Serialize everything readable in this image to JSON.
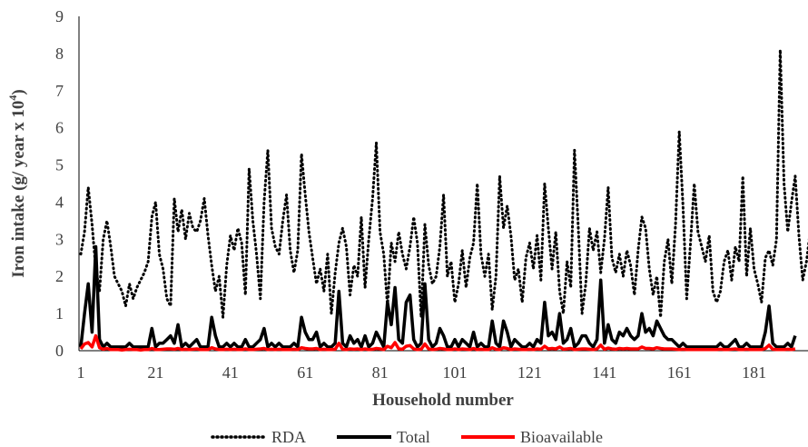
{
  "chart_data": {
    "type": "line",
    "title": "",
    "xlabel": "Household number",
    "ylabel_main": "Iron intake (g/ year x 10",
    "ylabel_sup": "4",
    "ylabel_end": ")",
    "xlim": [
      1,
      194
    ],
    "ylim": [
      0,
      9
    ],
    "x_ticks": [
      1,
      21,
      41,
      61,
      81,
      101,
      121,
      141,
      161,
      181
    ],
    "y_ticks": [
      0,
      1,
      2,
      3,
      4,
      5,
      6,
      7,
      8,
      9
    ],
    "grid": false,
    "legend_position": "bottom",
    "series": [
      {
        "name": "RDA",
        "style": "dotted",
        "color": "#000000",
        "values": [
          2.6,
          3.2,
          4.4,
          3.4,
          2.2,
          1.6,
          3.0,
          3.5,
          2.8,
          2.0,
          1.8,
          1.6,
          1.2,
          1.8,
          1.4,
          1.7,
          1.9,
          2.1,
          2.4,
          3.6,
          4.0,
          2.6,
          2.2,
          1.4,
          1.2,
          4.1,
          3.2,
          3.8,
          3.0,
          3.7,
          3.3,
          3.2,
          3.5,
          4.1,
          3.1,
          2.3,
          1.6,
          2.0,
          0.9,
          2.3,
          3.1,
          2.7,
          3.3,
          2.9,
          1.5,
          4.9,
          3.5,
          2.6,
          1.4,
          4.0,
          5.4,
          3.3,
          2.8,
          2.6,
          3.5,
          4.2,
          2.7,
          2.1,
          2.7,
          5.3,
          4.2,
          3.2,
          2.5,
          1.8,
          2.2,
          1.6,
          2.6,
          1.0,
          2.1,
          2.9,
          3.3,
          2.8,
          1.5,
          2.3,
          2.0,
          3.6,
          1.7,
          3.0,
          4.1,
          5.6,
          3.2,
          2.6,
          1.2,
          2.9,
          2.4,
          3.2,
          2.6,
          2.2,
          2.8,
          3.6,
          2.9,
          0.9,
          3.4,
          2.3,
          1.8,
          2.0,
          2.8,
          4.2,
          2.0,
          2.4,
          1.3,
          1.8,
          2.7,
          1.7,
          2.5,
          2.9,
          4.5,
          2.6,
          2.0,
          2.6,
          1.1,
          2.0,
          4.7,
          3.3,
          3.9,
          3.1,
          1.9,
          2.2,
          1.3,
          2.5,
          2.9,
          2.2,
          3.1,
          1.9,
          4.5,
          3.3,
          2.2,
          3.2,
          1.6,
          1.0,
          2.4,
          1.7,
          5.4,
          3.3,
          1.0,
          1.8,
          3.3,
          2.7,
          3.2,
          2.1,
          3.0,
          4.4,
          2.5,
          2.1,
          2.6,
          2.0,
          2.7,
          2.3,
          1.5,
          2.7,
          3.6,
          3.3,
          2.2,
          1.5,
          2.0,
          0.9,
          2.4,
          3.0,
          1.8,
          3.4,
          5.9,
          3.9,
          1.4,
          2.9,
          4.5,
          3.2,
          2.8,
          2.4,
          3.1,
          1.6,
          1.3,
          1.6,
          2.4,
          2.7,
          1.9,
          2.8,
          2.4,
          4.7,
          2.0,
          3.3,
          2.2,
          1.8,
          1.3,
          2.5,
          2.7,
          2.3,
          3.0,
          8.1,
          4.5,
          3.2,
          4.0,
          4.7,
          3.1,
          1.9,
          2.4,
          3.2
        ]
      },
      {
        "name": "Total",
        "style": "solid",
        "color": "#000000",
        "values": [
          0.1,
          1.0,
          1.8,
          0.5,
          2.8,
          0.3,
          0.1,
          0.2,
          0.1,
          0.1,
          0.1,
          0.1,
          0.1,
          0.2,
          0.1,
          0.1,
          0.1,
          0.1,
          0.1,
          0.6,
          0.1,
          0.2,
          0.2,
          0.3,
          0.4,
          0.2,
          0.7,
          0.1,
          0.2,
          0.1,
          0.2,
          0.3,
          0.1,
          0.1,
          0.1,
          0.9,
          0.4,
          0.1,
          0.1,
          0.2,
          0.1,
          0.2,
          0.1,
          0.1,
          0.3,
          0.1,
          0.1,
          0.2,
          0.3,
          0.6,
          0.1,
          0.2,
          0.1,
          0.2,
          0.1,
          0.1,
          0.1,
          0.2,
          0.1,
          0.9,
          0.5,
          0.3,
          0.3,
          0.5,
          0.1,
          0.2,
          0.1,
          0.1,
          0.2,
          1.6,
          0.2,
          0.1,
          0.4,
          0.2,
          0.3,
          0.1,
          0.4,
          0.1,
          0.2,
          0.5,
          0.3,
          0.1,
          1.3,
          0.7,
          1.7,
          0.3,
          0.2,
          1.3,
          1.5,
          0.3,
          0.1,
          0.2,
          1.8,
          0.3,
          0.1,
          0.2,
          0.6,
          0.4,
          0.1,
          0.1,
          0.3,
          0.1,
          0.3,
          0.2,
          0.1,
          0.5,
          0.1,
          0.2,
          0.1,
          0.1,
          0.8,
          0.2,
          0.1,
          0.8,
          0.5,
          0.1,
          0.3,
          0.2,
          0.1,
          0.1,
          0.2,
          0.1,
          0.3,
          0.2,
          1.3,
          0.4,
          0.5,
          0.3,
          1.0,
          0.2,
          0.3,
          0.6,
          0.1,
          0.2,
          0.4,
          0.4,
          0.2,
          0.1,
          0.3,
          1.9,
          0.2,
          0.7,
          0.3,
          0.2,
          0.5,
          0.4,
          0.6,
          0.4,
          0.3,
          0.4,
          1.0,
          0.5,
          0.6,
          0.4,
          0.8,
          0.6,
          0.4,
          0.3,
          0.3,
          0.2,
          0.1,
          0.2,
          0.1,
          0.1,
          0.1,
          0.1,
          0.1,
          0.1,
          0.1,
          0.1,
          0.1,
          0.2,
          0.1,
          0.1,
          0.2,
          0.3,
          0.1,
          0.1,
          0.2,
          0.1,
          0.1,
          0.1,
          0.1,
          0.5,
          1.2,
          0.2,
          0.1,
          0.1,
          0.1,
          0.2,
          0.1,
          0.4
        ]
      },
      {
        "name": "Bioavailable",
        "style": "solid",
        "color": "#ff0000",
        "values": [
          0.05,
          0.18,
          0.22,
          0.1,
          0.4,
          0.08,
          0.04,
          0.06,
          0.03,
          0.03,
          0.03,
          0.02,
          0.03,
          0.04,
          0.03,
          0.03,
          0.02,
          0.03,
          0.03,
          0.06,
          0.03,
          0.03,
          0.04,
          0.05,
          0.05,
          0.04,
          0.06,
          0.03,
          0.04,
          0.03,
          0.04,
          0.05,
          0.03,
          0.03,
          0.03,
          0.08,
          0.05,
          0.03,
          0.03,
          0.04,
          0.03,
          0.04,
          0.03,
          0.03,
          0.05,
          0.03,
          0.03,
          0.04,
          0.05,
          0.06,
          0.03,
          0.04,
          0.03,
          0.04,
          0.03,
          0.03,
          0.03,
          0.04,
          0.03,
          0.08,
          0.06,
          0.05,
          0.05,
          0.06,
          0.03,
          0.04,
          0.03,
          0.03,
          0.04,
          0.2,
          0.04,
          0.03,
          0.05,
          0.04,
          0.05,
          0.03,
          0.05,
          0.03,
          0.04,
          0.06,
          0.05,
          0.03,
          0.12,
          0.08,
          0.22,
          0.05,
          0.04,
          0.12,
          0.14,
          0.05,
          0.03,
          0.04,
          0.18,
          0.05,
          0.03,
          0.04,
          0.06,
          0.05,
          0.03,
          0.03,
          0.05,
          0.03,
          0.05,
          0.04,
          0.03,
          0.06,
          0.03,
          0.04,
          0.03,
          0.03,
          0.08,
          0.04,
          0.03,
          0.08,
          0.06,
          0.03,
          0.05,
          0.04,
          0.03,
          0.03,
          0.04,
          0.03,
          0.05,
          0.04,
          0.12,
          0.05,
          0.06,
          0.05,
          0.1,
          0.04,
          0.05,
          0.06,
          0.03,
          0.04,
          0.05,
          0.05,
          0.04,
          0.03,
          0.05,
          0.15,
          0.04,
          0.07,
          0.05,
          0.04,
          0.06,
          0.05,
          0.06,
          0.05,
          0.05,
          0.05,
          0.1,
          0.06,
          0.06,
          0.05,
          0.08,
          0.06,
          0.05,
          0.05,
          0.05,
          0.04,
          0.03,
          0.04,
          0.03,
          0.03,
          0.03,
          0.03,
          0.03,
          0.03,
          0.03,
          0.03,
          0.03,
          0.04,
          0.03,
          0.03,
          0.04,
          0.05,
          0.03,
          0.03,
          0.04,
          0.03,
          0.03,
          0.03,
          0.03,
          0.06,
          0.15,
          0.04,
          0.03,
          0.03,
          0.03,
          0.04,
          0.03,
          0.05
        ]
      }
    ]
  }
}
